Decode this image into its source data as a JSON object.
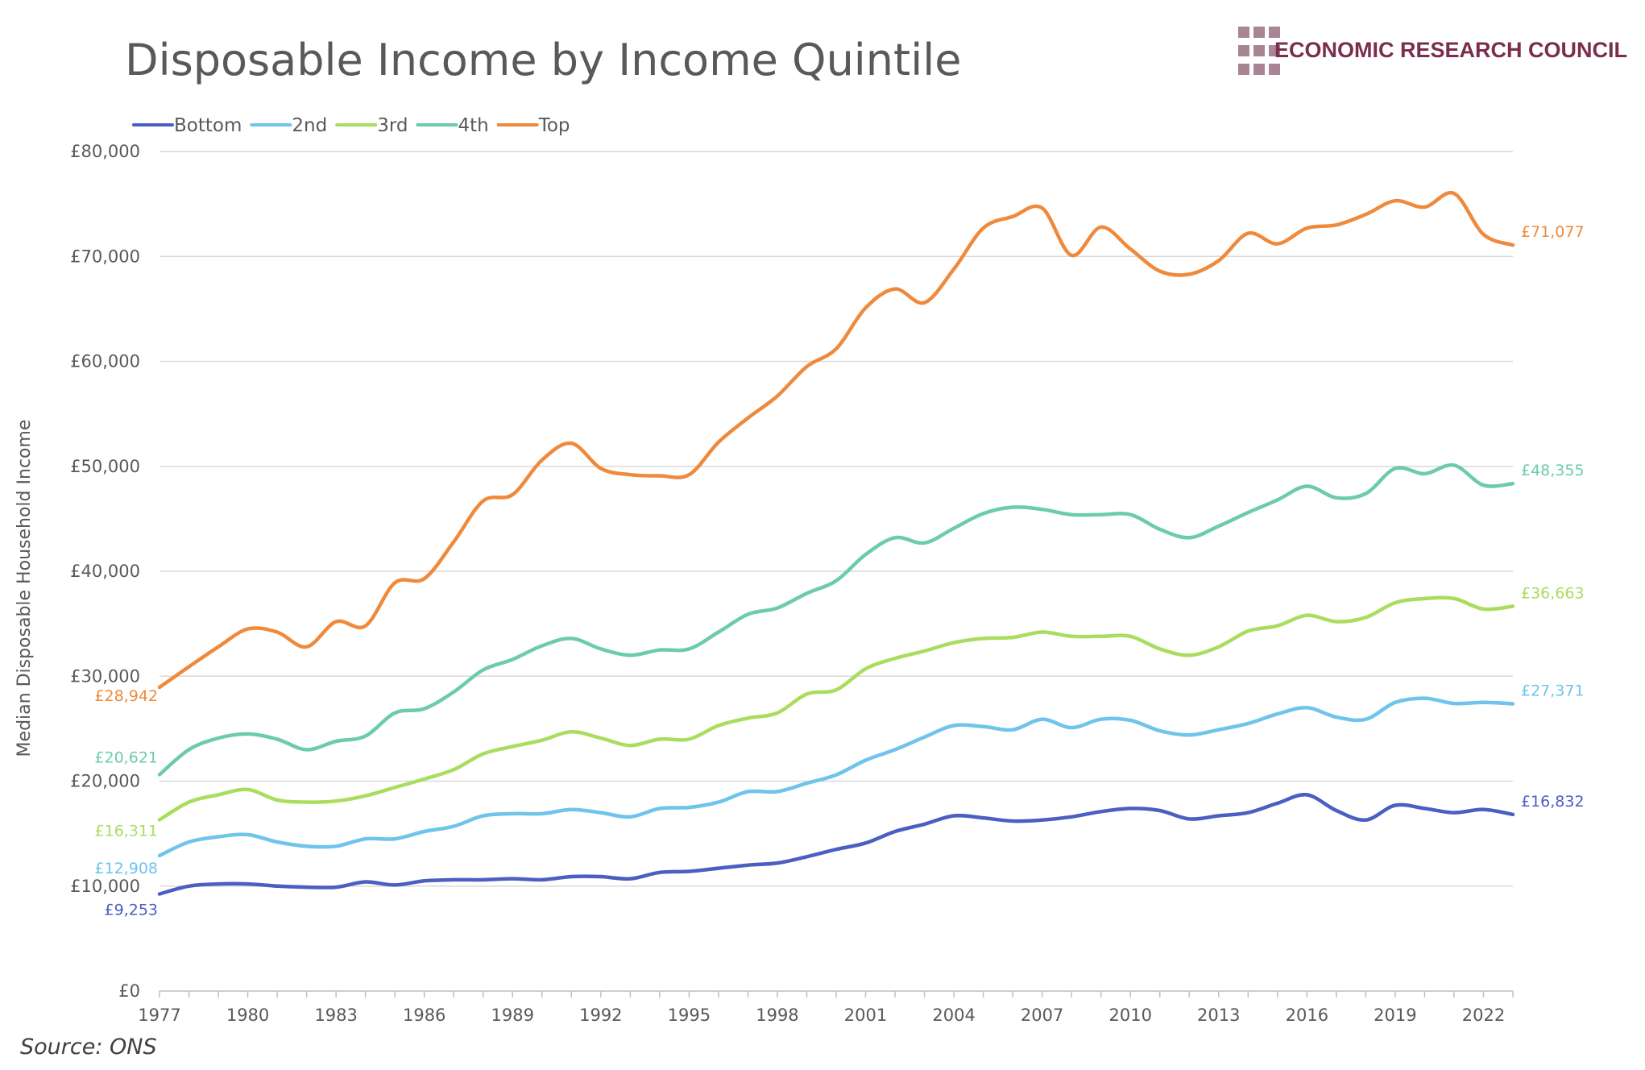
{
  "brand": {
    "name": "ECONOMIC RESEARCH COUNCIL",
    "color": "#7b2d4e",
    "logo_color": "#a88595"
  },
  "source": "Source: ONS",
  "chart_data": {
    "type": "line",
    "title": "Disposable Income by Income Quintile",
    "ylabel": "Median Disposable Household Income",
    "xlabel": "",
    "ylim": [
      0,
      80000
    ],
    "xlim": [
      1977,
      2023
    ],
    "yticks": [
      0,
      10000,
      20000,
      30000,
      40000,
      50000,
      60000,
      70000,
      80000
    ],
    "ytick_labels": [
      "£0",
      "£10,000",
      "£20,000",
      "£30,000",
      "£40,000",
      "£50,000",
      "£60,000",
      "£70,000",
      "£80,000"
    ],
    "xticks": [
      1977,
      1980,
      1983,
      1986,
      1989,
      1992,
      1995,
      1998,
      2001,
      2004,
      2007,
      2010,
      2013,
      2016,
      2019,
      2022
    ],
    "xtick_labels": [
      "1977",
      "1980",
      "1983",
      "1986",
      "1989",
      "1992",
      "1995",
      "1998",
      "2001",
      "2004",
      "2007",
      "2010",
      "2013",
      "2016",
      "2019",
      "2022"
    ],
    "grid": "horizontal",
    "legend_position": "top-left",
    "x": [
      1977,
      1978,
      1979,
      1980,
      1981,
      1982,
      1983,
      1984,
      1985,
      1986,
      1987,
      1988,
      1989,
      1990,
      1991,
      1992,
      1993,
      1994,
      1995,
      1996,
      1997,
      1998,
      1999,
      2000,
      2001,
      2002,
      2003,
      2004,
      2005,
      2006,
      2007,
      2008,
      2009,
      2010,
      2011,
      2012,
      2013,
      2014,
      2015,
      2016,
      2017,
      2018,
      2019,
      2020,
      2021,
      2022,
      2023
    ],
    "series": [
      {
        "name": "Bottom",
        "color": "#4a5fc1",
        "start_label": "£9,253",
        "end_label": "£16,832",
        "values": [
          9253,
          10000,
          10200,
          10200,
          10000,
          9900,
          9900,
          10400,
          10100,
          10500,
          10600,
          10600,
          10700,
          10600,
          10900,
          10900,
          10700,
          11300,
          11400,
          11700,
          12000,
          12200,
          12800,
          13500,
          14100,
          15200,
          15900,
          16700,
          16500,
          16200,
          16300,
          16600,
          17100,
          17400,
          17200,
          16400,
          16700,
          17000,
          17900,
          18700,
          17200,
          16300,
          17700,
          17400,
          17000,
          17300,
          16832
        ]
      },
      {
        "name": "2nd",
        "color": "#6ec4ea",
        "start_label": "£12,908",
        "end_label": "£27,371",
        "values": [
          12908,
          14200,
          14700,
          14900,
          14200,
          13800,
          13800,
          14500,
          14500,
          15200,
          15700,
          16700,
          16900,
          16900,
          17300,
          17000,
          16600,
          17400,
          17500,
          18000,
          19000,
          19000,
          19800,
          20600,
          22000,
          23000,
          24200,
          25300,
          25200,
          24900,
          25900,
          25100,
          25900,
          25800,
          24800,
          24400,
          24900,
          25500,
          26400,
          27000,
          26100,
          25900,
          27500,
          27900,
          27400,
          27500,
          27371
        ]
      },
      {
        "name": "3rd",
        "color": "#a9dd5e",
        "start_label": "£16,311",
        "end_label": "£36,663",
        "values": [
          16311,
          18000,
          18700,
          19200,
          18200,
          18000,
          18100,
          18600,
          19400,
          20200,
          21100,
          22600,
          23300,
          23900,
          24700,
          24100,
          23400,
          24000,
          24000,
          25300,
          26000,
          26500,
          28300,
          28700,
          30700,
          31700,
          32400,
          33200,
          33600,
          33700,
          34200,
          33800,
          33800,
          33800,
          32600,
          32000,
          32800,
          34300,
          34800,
          35800,
          35200,
          35600,
          37000,
          37400,
          37400,
          36400,
          36663
        ]
      },
      {
        "name": "4th",
        "color": "#6ccbae",
        "start_label": "£20,621",
        "end_label": "£48,355",
        "values": [
          20621,
          23000,
          24100,
          24500,
          24000,
          23000,
          23800,
          24300,
          26500,
          26900,
          28500,
          30600,
          31600,
          32900,
          33600,
          32600,
          32000,
          32500,
          32600,
          34200,
          35900,
          36500,
          37900,
          39100,
          41600,
          43200,
          42700,
          44100,
          45500,
          46100,
          45900,
          45400,
          45400,
          45400,
          44000,
          43200,
          44300,
          45600,
          46800,
          48100,
          47000,
          47400,
          49800,
          49300,
          50100,
          48200,
          48355
        ]
      },
      {
        "name": "Top",
        "color": "#ef8a3c",
        "start_label": "£28,942",
        "end_label": "£71,077",
        "values": [
          28942,
          30900,
          32800,
          34500,
          34200,
          32800,
          35200,
          34800,
          38900,
          39300,
          42800,
          46700,
          47300,
          50600,
          52200,
          49800,
          49200,
          49100,
          49200,
          52300,
          54600,
          56700,
          59500,
          61200,
          65100,
          66900,
          65600,
          68800,
          72700,
          73800,
          74600,
          70100,
          72800,
          70700,
          68600,
          68300,
          69600,
          72200,
          71200,
          72700,
          73000,
          74000,
          75300,
          74700,
          76000,
          72100,
          71077
        ]
      }
    ]
  }
}
